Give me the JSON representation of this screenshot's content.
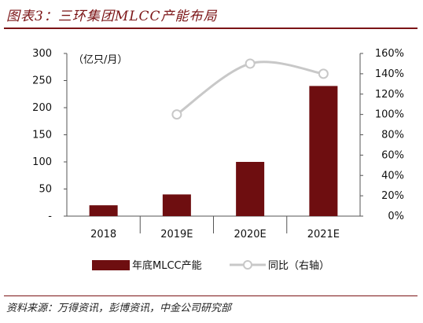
{
  "header": {
    "title": "图表3：三环集团MLCC产能布局"
  },
  "footer": {
    "source": "资料来源：万得资讯，彭博资讯，中金公司研究部"
  },
  "colors": {
    "bar": "#6e0e10",
    "line": "#c8c8c8",
    "marker_fill": "#ffffff",
    "accent": "#7b1416",
    "axis": "#555555"
  },
  "chart_data": {
    "type": "bar",
    "title": "三环集团MLCC产能布局",
    "unit_label": "（亿只/月）",
    "categories": [
      "2018",
      "2019E",
      "2020E",
      "2021E"
    ],
    "left_axis": {
      "ylim": [
        0,
        300
      ],
      "ticks": [
        "-",
        "50",
        "100",
        "150",
        "200",
        "250",
        "300"
      ],
      "tick_values": [
        0,
        50,
        100,
        150,
        200,
        250,
        300
      ]
    },
    "right_axis": {
      "ylim": [
        0,
        160
      ],
      "ticks": [
        "0%",
        "20%",
        "40%",
        "60%",
        "80%",
        "100%",
        "120%",
        "140%",
        "160%"
      ],
      "tick_values": [
        0,
        20,
        40,
        60,
        80,
        100,
        120,
        140,
        160
      ]
    },
    "series": [
      {
        "name": "年底MLCC产能",
        "type": "bar",
        "axis": "left",
        "values": [
          20,
          40,
          100,
          240
        ]
      },
      {
        "name": "同比（右轴）",
        "type": "line",
        "axis": "right",
        "values": [
          null,
          100,
          150,
          140
        ]
      }
    ],
    "grid": false,
    "legend": "bottom"
  }
}
